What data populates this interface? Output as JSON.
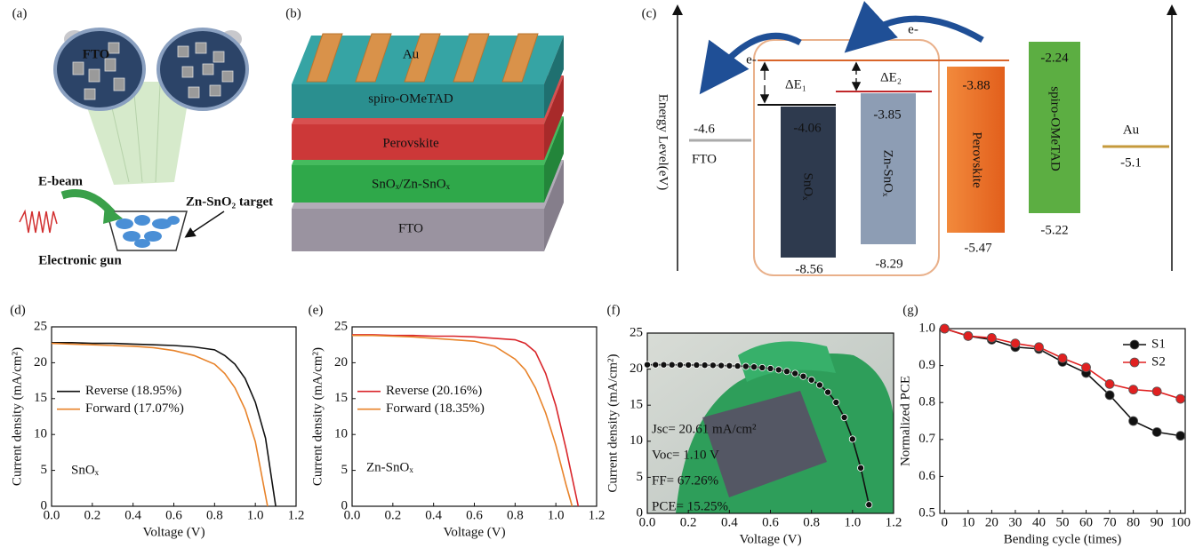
{
  "panel_a": {
    "label": "(a)",
    "fto": "FTO",
    "ebeam": "E-beam",
    "target": "Zn-SnO₂ target",
    "gun": "Electronic gun"
  },
  "panel_b": {
    "label": "(b)",
    "layers": [
      "Au",
      "spiro-OMeTAD",
      "Perovskite",
      "SnOₓ/Zn-SnOₓ",
      "FTO"
    ]
  },
  "panel_c": {
    "label": "(c)",
    "y_label": "Energy Level(eV)",
    "electron_labels": [
      "e-",
      "e-"
    ],
    "delta_labels": [
      "ΔE₁",
      "ΔE₂"
    ],
    "levels": [
      {
        "name": "FTO",
        "level": "-4.6"
      },
      {
        "name": "SnOₓ",
        "top": "-4.06",
        "bottom": "-8.56"
      },
      {
        "name": "Zn-SnOₓ",
        "top": "-3.85",
        "bottom": "-8.29"
      },
      {
        "name": "Perovskite",
        "top": "-3.88",
        "bottom": "-5.47"
      },
      {
        "name": "spiro-OMeTAD",
        "top": "-2.24",
        "bottom": "-5.22"
      },
      {
        "name": "Au",
        "level": "-5.1"
      }
    ]
  },
  "chart_data": [
    {
      "type": "line",
      "panel_label": "(d)",
      "x_label": "Voltage (V)",
      "y_label": "Current density (mA/cm²)",
      "annotations": [
        "SnOₓ"
      ],
      "legend": "center left",
      "xlim": [
        0,
        1.2
      ],
      "xticks": [
        {
          "value": 0,
          "label": "0.0"
        },
        0.2,
        0.4,
        0.6,
        0.8,
        {
          "value": 1,
          "label": "1.0"
        },
        1.2
      ],
      "ylim": [
        0,
        25
      ],
      "yticks": [
        0,
        5,
        10,
        15,
        20,
        25
      ],
      "series": [
        {
          "name": "Reverse (18.95%)",
          "color": "#111111",
          "x": [
            0,
            0.1,
            0.2,
            0.3,
            0.4,
            0.5,
            0.6,
            0.7,
            0.8,
            0.85,
            0.9,
            0.95,
            1.0,
            1.05,
            1.1
          ],
          "values": [
            22.8,
            22.8,
            22.7,
            22.7,
            22.6,
            22.5,
            22.4,
            22.2,
            21.8,
            21.0,
            19.8,
            17.8,
            14.5,
            9.5,
            0
          ]
        },
        {
          "name": "Forward (17.07%)",
          "color": "#e8832a",
          "x": [
            0,
            0.1,
            0.2,
            0.3,
            0.4,
            0.5,
            0.6,
            0.7,
            0.8,
            0.85,
            0.9,
            0.95,
            1.0,
            1.06
          ],
          "values": [
            22.7,
            22.6,
            22.5,
            22.4,
            22.3,
            22.1,
            21.7,
            21.0,
            19.8,
            18.5,
            16.5,
            13.5,
            9.0,
            0
          ]
        }
      ]
    },
    {
      "type": "line",
      "panel_label": "(e)",
      "x_label": "Voltage (V)",
      "y_label": "Current density (mA/cm²)",
      "annotations": [
        "Zn-SnOₓ"
      ],
      "legend": "center left",
      "xlim": [
        0,
        1.2
      ],
      "xticks": [
        {
          "value": 0,
          "label": "0.0"
        },
        0.2,
        0.4,
        0.6,
        0.8,
        {
          "value": 1,
          "label": "1.0"
        },
        1.2
      ],
      "ylim": [
        0,
        25
      ],
      "yticks": [
        0,
        5,
        10,
        15,
        20,
        25
      ],
      "series": [
        {
          "name": "Reverse (20.16%)",
          "color": "#d9262b",
          "x": [
            0,
            0.1,
            0.2,
            0.3,
            0.4,
            0.5,
            0.6,
            0.7,
            0.8,
            0.85,
            0.9,
            0.95,
            1.0,
            1.05,
            1.11
          ],
          "values": [
            23.9,
            23.9,
            23.8,
            23.8,
            23.7,
            23.7,
            23.6,
            23.4,
            23.2,
            22.7,
            21.5,
            18.5,
            14.0,
            8.0,
            0
          ]
        },
        {
          "name": "Forward (18.35%)",
          "color": "#e8832a",
          "x": [
            0,
            0.1,
            0.2,
            0.3,
            0.4,
            0.5,
            0.6,
            0.7,
            0.8,
            0.85,
            0.9,
            0.95,
            1.0,
            1.05,
            1.08
          ],
          "values": [
            23.8,
            23.8,
            23.7,
            23.6,
            23.4,
            23.2,
            23.0,
            22.3,
            20.5,
            19.0,
            16.5,
            13.0,
            8.5,
            3.0,
            0
          ]
        }
      ]
    },
    {
      "type": "line",
      "panel_label": "(f)",
      "x_label": "Voltage (V)",
      "y_label": "Current density (mA/cm²)",
      "annotations": [
        "Jsc= 20.61 mA/cm²",
        "Voc= 1.10 V",
        "FF= 67.26%",
        "PCE= 15.25%"
      ],
      "xlim": [
        0,
        1.2
      ],
      "xticks": [
        {
          "value": 0,
          "label": "0.0"
        },
        0.2,
        0.4,
        0.6,
        0.8,
        {
          "value": 1,
          "label": "1.0"
        },
        1.2
      ],
      "ylim": [
        0,
        25
      ],
      "yticks": [
        0,
        5,
        10,
        15,
        20,
        25
      ],
      "series": [
        {
          "color": "#111111",
          "marker": "o",
          "x": [
            0,
            0.04,
            0.08,
            0.12,
            0.16,
            0.2,
            0.24,
            0.28,
            0.32,
            0.36,
            0.4,
            0.44,
            0.48,
            0.52,
            0.56,
            0.6,
            0.64,
            0.68,
            0.72,
            0.76,
            0.8,
            0.84,
            0.88,
            0.92,
            0.96,
            1.0,
            1.04,
            1.08
          ],
          "values": [
            20.61,
            20.61,
            20.6,
            20.6,
            20.59,
            20.58,
            20.57,
            20.55,
            20.53,
            20.5,
            20.47,
            20.43,
            20.38,
            20.3,
            20.2,
            20.08,
            19.9,
            19.68,
            19.4,
            19.0,
            18.5,
            17.8,
            16.8,
            15.4,
            13.3,
            10.3,
            6.3,
            1.2
          ]
        }
      ]
    },
    {
      "type": "line",
      "panel_label": "(g)",
      "x_label": "Bending cycle (times)",
      "y_label": "Normalized PCE",
      "legend": "upper right",
      "xlim": [
        -2,
        102
      ],
      "xticks": [
        0,
        10,
        20,
        30,
        40,
        50,
        60,
        70,
        80,
        90,
        100
      ],
      "ylim": [
        0.5,
        1.0
      ],
      "yticks": [
        0.5,
        0.6,
        0.7,
        0.8,
        0.9,
        {
          "value": 1,
          "label": "1.0"
        }
      ],
      "series": [
        {
          "name": "S1",
          "color": "#111111",
          "marker": "o",
          "x": [
            0,
            10,
            20,
            30,
            40,
            50,
            60,
            70,
            80,
            90,
            100
          ],
          "values": [
            1.0,
            0.98,
            0.97,
            0.95,
            0.945,
            0.91,
            0.88,
            0.82,
            0.75,
            0.72,
            0.71
          ]
        },
        {
          "name": "S2",
          "color": "#e02020",
          "marker": "o",
          "x": [
            0,
            10,
            20,
            30,
            40,
            50,
            60,
            70,
            80,
            90,
            100
          ],
          "values": [
            1.0,
            0.98,
            0.975,
            0.96,
            0.95,
            0.92,
            0.895,
            0.85,
            0.835,
            0.83,
            0.81
          ]
        }
      ]
    }
  ]
}
